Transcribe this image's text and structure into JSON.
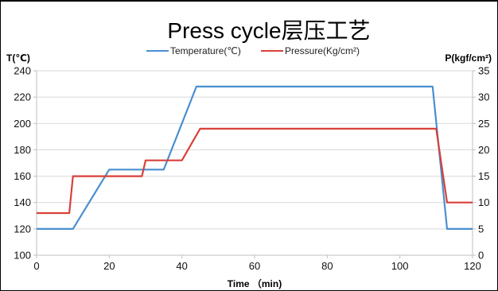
{
  "chart_data": {
    "type": "line",
    "title": "Press cycle层压工艺",
    "xlabel": "Time （min)",
    "ylabel_left": "T(℃)",
    "ylabel_right": "P(kgf/cm²)",
    "xlim": [
      0,
      120
    ],
    "ylim_left": [
      100,
      240
    ],
    "ylim_right": [
      0,
      35
    ],
    "x_ticks": [
      0,
      20,
      40,
      60,
      80,
      100,
      120
    ],
    "y_left_ticks": [
      100,
      120,
      140,
      160,
      180,
      200,
      220,
      240
    ],
    "y_right_ticks": [
      0,
      5,
      10,
      15,
      20,
      25,
      30,
      35
    ],
    "grid": true,
    "legend_position": "top",
    "series": [
      {
        "name": "Temperature(℃)",
        "axis": "left",
        "color": "#4a8fd0",
        "x": [
          0,
          10,
          20,
          35,
          44,
          109,
          113,
          120
        ],
        "y": [
          120,
          120,
          165,
          165,
          228,
          228,
          120,
          120
        ]
      },
      {
        "name": "Pressure(Kg/cm²)",
        "axis": "right",
        "color": "#d9403a",
        "x": [
          0,
          9,
          10,
          29,
          30,
          40,
          45,
          110,
          113,
          120
        ],
        "y": [
          8,
          8,
          15,
          15,
          18,
          18,
          24,
          24,
          10,
          10
        ]
      }
    ]
  }
}
